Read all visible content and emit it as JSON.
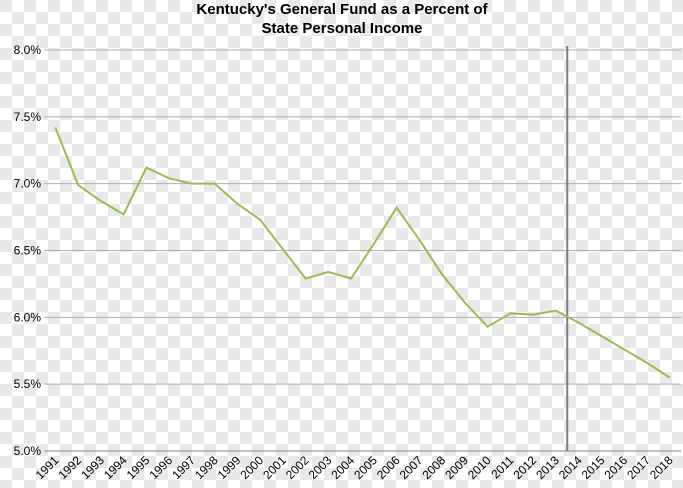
{
  "chart_data": {
    "type": "line",
    "title": [
      "Kentucky's General Fund as a Percent of",
      "State Personal Income"
    ],
    "categories": [
      "1991",
      "1992",
      "1993",
      "1994",
      "1995",
      "1996",
      "1997",
      "1998",
      "1999",
      "2000",
      "2001",
      "2002",
      "2003",
      "2004",
      "2005",
      "2006",
      "2007",
      "2008",
      "2009",
      "2010",
      "2011",
      "2012",
      "2013",
      "2014",
      "2015",
      "2016",
      "2017",
      "2018"
    ],
    "series": [
      {
        "color": "#9bbb59",
        "values": [
          7.42,
          6.99,
          6.87,
          6.77,
          7.12,
          7.04,
          7.0,
          7.0,
          6.85,
          6.73,
          6.51,
          6.29,
          6.34,
          6.29,
          6.55,
          6.82,
          6.58,
          6.32,
          6.11,
          5.93,
          6.03,
          6.02,
          6.05,
          5.96,
          5.86,
          5.76,
          5.66,
          5.55
        ]
      }
    ],
    "ylim": [
      5.0,
      8.0
    ],
    "yticks": [
      {
        "value": 5.0,
        "label": "5.0%"
      },
      {
        "value": 5.5,
        "label": "5.5%"
      },
      {
        "value": 6.0,
        "label": "6.0%"
      },
      {
        "value": 6.5,
        "label": "6.5%"
      },
      {
        "value": 7.0,
        "label": "7.0%"
      },
      {
        "value": 7.5,
        "label": "7.5%"
      },
      {
        "value": 8.0,
        "label": "8.0%"
      }
    ],
    "grid": true,
    "divider_after": "2013"
  }
}
